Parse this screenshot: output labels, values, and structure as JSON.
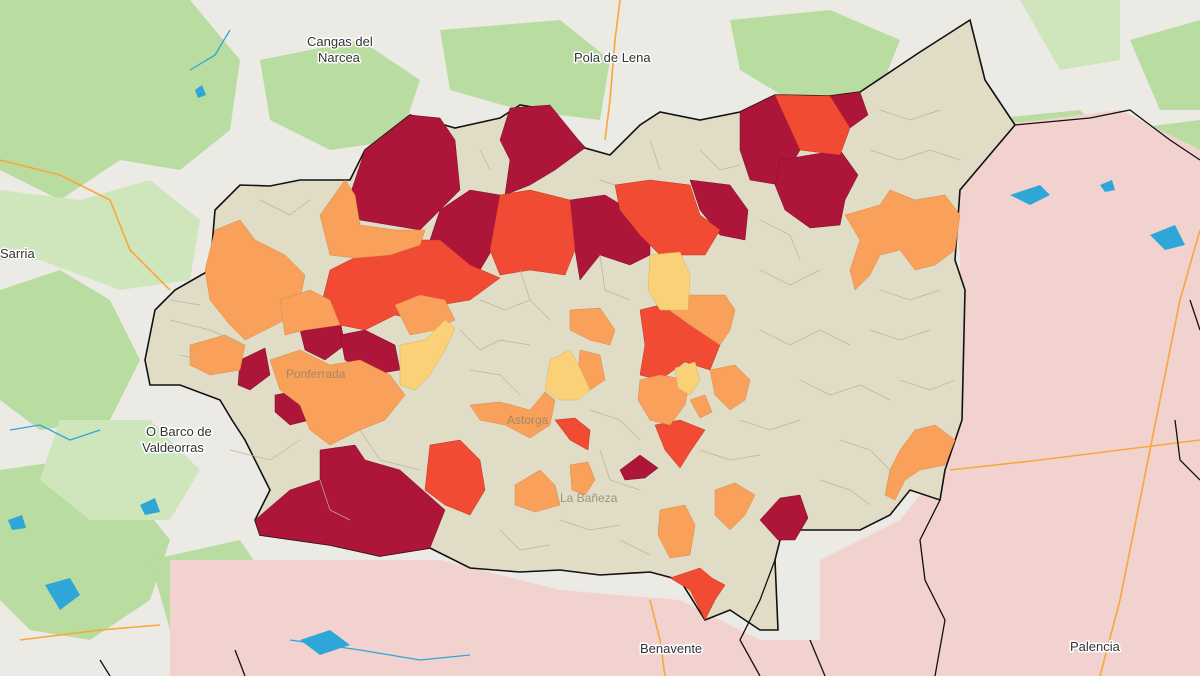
{
  "map": {
    "colors": {
      "background": "#eceae4",
      "forest": "#b9dca1",
      "forest_light": "#cfe6bd",
      "neighbor_region": "#f2d2cf",
      "province_base": "#e0dcc6",
      "level_1": "#fbd178",
      "level_2": "#f9a15a",
      "level_3": "#f14b33",
      "level_4": "#ad1539",
      "water": "#2fa6d8",
      "road": "#f7a838",
      "province_border": "#111111"
    },
    "place_labels": {
      "cangas_line1": "Cangas del",
      "cangas_line2": "Narcea",
      "pola_de_lena": "Pola de Lena",
      "sarria": "Sarria",
      "o_barco_line1": "O Barco de",
      "o_barco_line2": "Valdeorras",
      "benavente": "Benavente",
      "palencia": "Palencia"
    },
    "town_labels": {
      "ponferrada": "Ponferrada",
      "astorga": "Astorga",
      "la_baneza": "La Bañeza"
    }
  }
}
